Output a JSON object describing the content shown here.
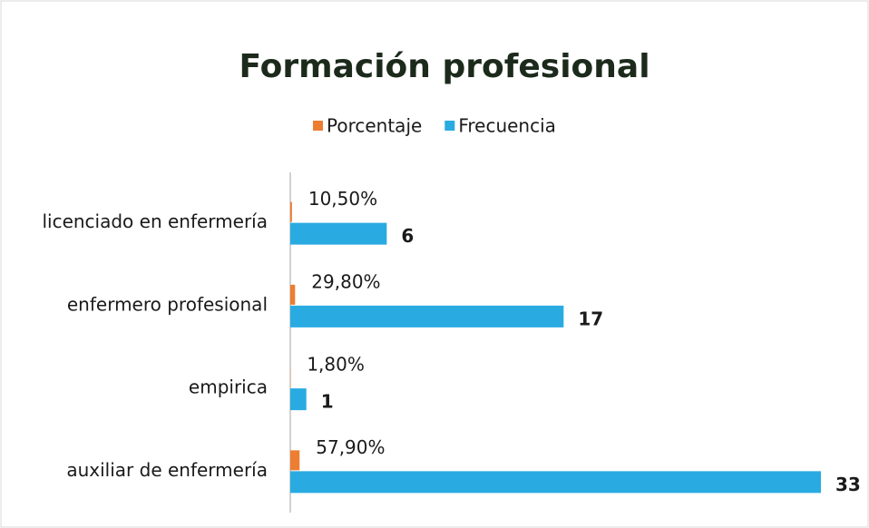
{
  "chart_data": {
    "type": "hbar",
    "title": "Formación profesional",
    "categories": [
      "licenciado en enfermería",
      "enfermero profesional",
      "empirica",
      "auxiliar de enfermería"
    ],
    "series": [
      {
        "name": "Porcentaje",
        "color": "#ed7d31",
        "values": [
          0.105,
          0.298,
          0.018,
          0.579
        ],
        "value_labels": [
          "10,50%",
          "29,80%",
          "1,80%",
          "57,90%"
        ]
      },
      {
        "name": "Frecuencia",
        "color": "#29abe2",
        "values": [
          6,
          17,
          1,
          33
        ]
      }
    ],
    "xlim": [
      0,
      33
    ],
    "legend": "top"
  }
}
